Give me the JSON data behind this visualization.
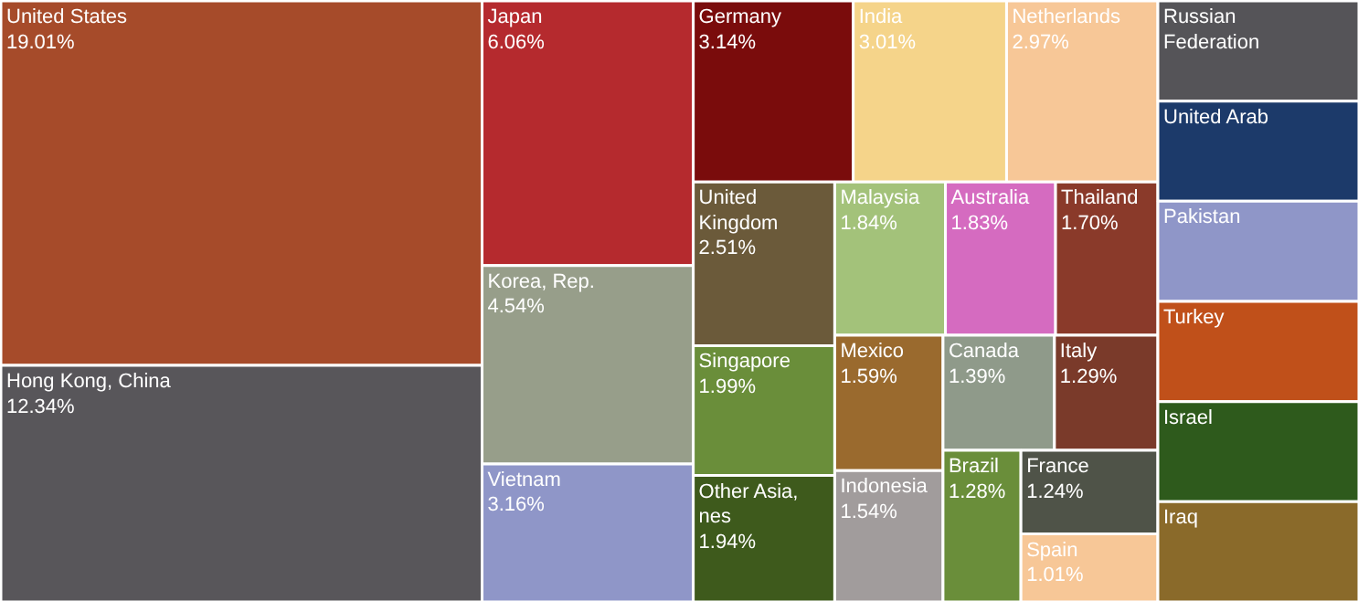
{
  "chart_data": {
    "type": "other",
    "categories": [
      "United States",
      "Hong Kong, China",
      "Japan",
      "Korea, Rep.",
      "Vietnam",
      "Germany",
      "India",
      "Netherlands",
      "United Kingdom",
      "Singapore",
      "Other Asia, nes",
      "Malaysia",
      "Australia",
      "Thailand",
      "Mexico",
      "Indonesia",
      "Canada",
      "Italy",
      "Brazil",
      "France",
      "Spain",
      "Russian Federation",
      "United Arab",
      "Pakistan",
      "Turkey",
      "Israel",
      "Iraq"
    ],
    "values": [
      19.01,
      12.34,
      6.06,
      4.54,
      3.16,
      3.14,
      3.01,
      2.97,
      2.51,
      1.99,
      1.94,
      1.84,
      1.83,
      1.7,
      1.59,
      1.54,
      1.39,
      1.29,
      1.28,
      1.24,
      1.01,
      null,
      null,
      null,
      null,
      null,
      null
    ],
    "value_labels": [
      "19.01%",
      "12.34%",
      "6.06%",
      "4.54%",
      "3.16%",
      "3.14%",
      "3.01%",
      "2.97%",
      "2.51%",
      "1.99%",
      "1.94%",
      "1.84%",
      "1.83%",
      "1.70%",
      "1.59%",
      "1.54%",
      "1.39%",
      "1.29%",
      "1.28%",
      "1.24%",
      "1.01%",
      null,
      null,
      null,
      null,
      null,
      null
    ],
    "colors": [
      "#a64b2a",
      "#58565a",
      "#b52a2e",
      "#979e8a",
      "#8f96c8",
      "#7a0c0c",
      "#f5d48a",
      "#f7c797",
      "#6b5a3a",
      "#6a8e3a",
      "#3e5a1c",
      "#a3c27a",
      "#d56bc0",
      "#8a3a2a",
      "#9a6a2e",
      "#a19c9c",
      "#8f9a8a",
      "#7a3a2a",
      "#6a8e3a",
      "#4f5348",
      "#f7c797",
      "#555458",
      "#1c3a6a",
      "#8f96c8",
      "#c0501a",
      "#2e5a1c",
      "#8a6a2a"
    ]
  }
}
